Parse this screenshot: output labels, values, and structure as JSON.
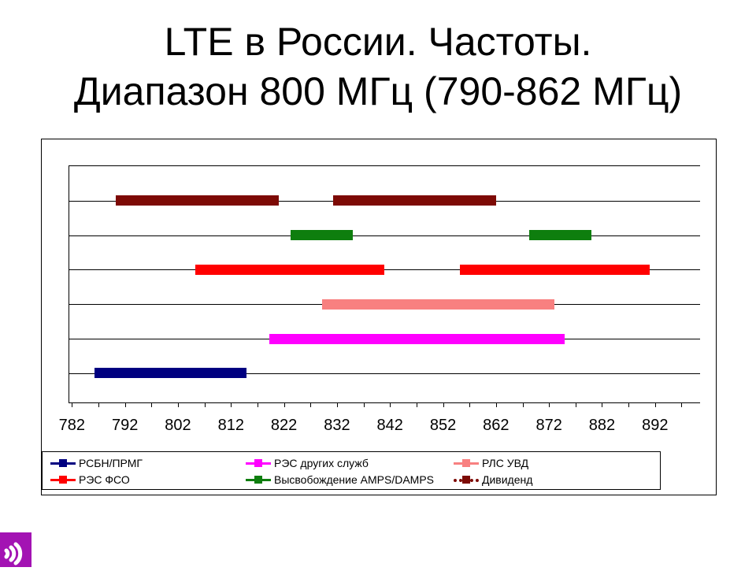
{
  "title": {
    "line1": "LTE в России. Частоты.",
    "line2": "Диапазон 800 МГц (790-862 МГц)"
  },
  "chart_data": {
    "type": "bar",
    "orientation": "horizontal-frequency-segments",
    "title": "LTE в России. Частоты. Диапазон 800 МГц (790-862 МГц)",
    "xlabel": "",
    "ylabel": "",
    "grid": "horizontal-on",
    "x_axis": {
      "unit": "МГц",
      "min": 781.5,
      "max": 900.5,
      "tick_start": 782,
      "tick_end": 897,
      "tick_step": 5,
      "label_step": 10,
      "labels": [
        "782",
        "792",
        "802",
        "812",
        "822",
        "832",
        "842",
        "852",
        "862",
        "872",
        "882",
        "892"
      ]
    },
    "series": [
      {
        "name": "Дивиденд",
        "row": 1,
        "color": "#7D0A05",
        "line_style": "dotted-with-marker",
        "segments": [
          [
            791,
            821
          ],
          [
            832,
            862
          ]
        ]
      },
      {
        "name": "Высвобождение AMPS/DAMPS",
        "row": 2,
        "color": "#0E7E0E",
        "line_style": "solid",
        "segments": [
          [
            824,
            835
          ],
          [
            869,
            880
          ]
        ]
      },
      {
        "name": "РЭС ФСО",
        "row": 3,
        "color": "#FF0000",
        "line_style": "solid",
        "segments": [
          [
            806,
            841
          ],
          [
            856,
            891
          ]
        ]
      },
      {
        "name": "РЛС УВД",
        "row": 4,
        "color": "#F88080",
        "line_style": "solid",
        "segments": [
          [
            830,
            873
          ]
        ]
      },
      {
        "name": "РЭС других служб",
        "row": 5,
        "color": "#FF00FF",
        "line_style": "solid",
        "segments": [
          [
            820,
            875
          ]
        ]
      },
      {
        "name": "РСБН/ПРМГ",
        "row": 6,
        "color": "#000080",
        "line_style": "solid",
        "segments": [
          [
            787,
            815
          ]
        ]
      }
    ],
    "legend_position": "bottom"
  },
  "legend": {
    "rows": [
      [
        {
          "label": "РСБН/ПРМГ",
          "color": "#000080",
          "style": "solid"
        },
        {
          "label": "РЭС других служб",
          "color": "#FF00FF",
          "style": "solid"
        },
        {
          "label": "РЛС УВД",
          "color": "#F88080",
          "style": "solid"
        }
      ],
      [
        {
          "label": "РЭС ФСО",
          "color": "#FF0000",
          "style": "solid"
        },
        {
          "label": "Высвобождение AMPS/DAMPS",
          "color": "#0E7E0E",
          "style": "solid"
        },
        {
          "label": "Дивиденд",
          "color": "#7D0A05",
          "style": "dotted"
        }
      ]
    ],
    "column_offsets": [
      10,
      258,
      522
    ],
    "row_offsets": [
      5,
      26
    ]
  },
  "logo": {
    "name": "signal-waves-logo",
    "background": "#A313B3",
    "glyph": ")))"
  }
}
